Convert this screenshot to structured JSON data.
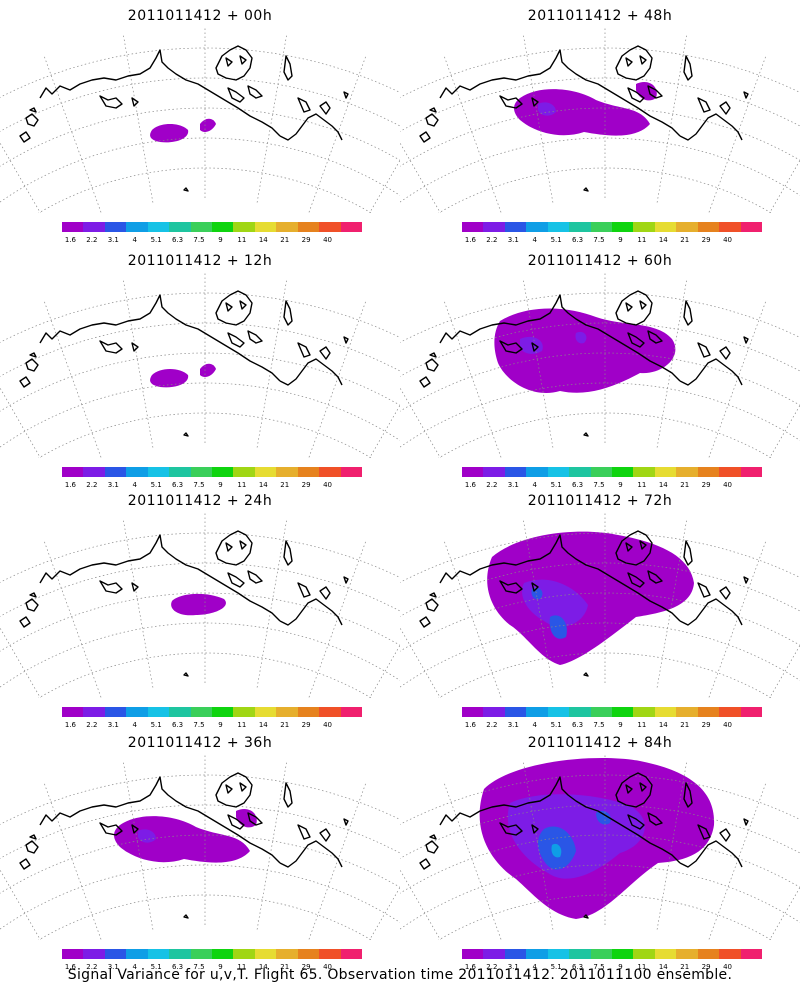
{
  "caption": "Signal Variance for u,v,T. Flight 65. Observation time 2011011412. 2011011100 ensemble.",
  "colorbar": {
    "labels": [
      "1.6",
      "2.2",
      "3.1",
      "4",
      "5.1",
      "6.3",
      "7.5",
      "9",
      "11",
      "14",
      "21",
      "29",
      "40"
    ],
    "colors": [
      "#a000c8",
      "#7d1ce6",
      "#2a56e6",
      "#0f9ee6",
      "#16c2e6",
      "#1ec5a0",
      "#3acf5a",
      "#0fd40f",
      "#a0d614",
      "#e6dc32",
      "#e6af2d",
      "#e6821e",
      "#f05028",
      "#f0206e"
    ]
  },
  "panels": [
    {
      "title": "2011011412 + 00h",
      "signal_level": 1
    },
    {
      "title": "2011011412 + 48h",
      "signal_level": 3
    },
    {
      "title": "2011011412 + 12h",
      "signal_level": 1
    },
    {
      "title": "2011011412 + 60h",
      "signal_level": 5
    },
    {
      "title": "2011011412 + 24h",
      "signal_level": 2
    },
    {
      "title": "2011011412 + 72h",
      "signal_level": 6
    },
    {
      "title": "2011011412 + 36h",
      "signal_level": 3
    },
    {
      "title": "2011011412 + 84h",
      "signal_level": 8
    }
  ]
}
